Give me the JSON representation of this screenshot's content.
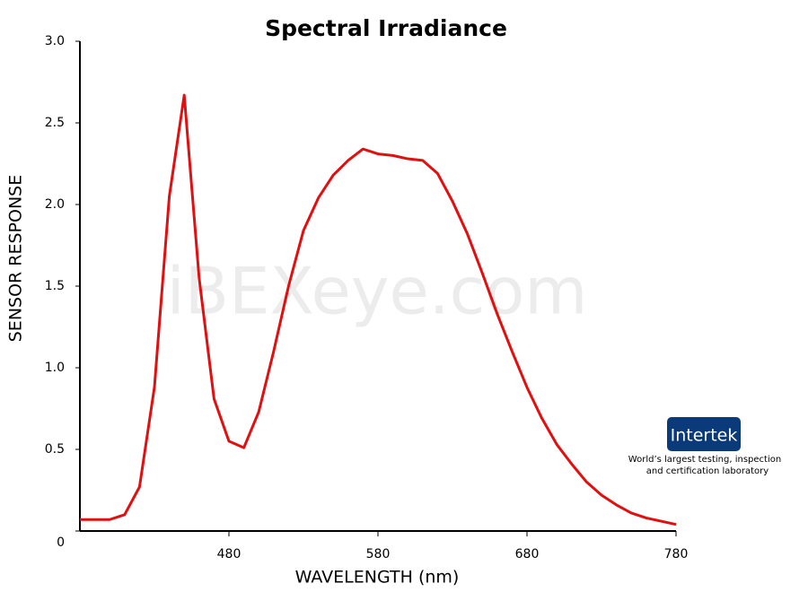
{
  "chart_data": {
    "type": "line",
    "title": "Spectral Irradiance",
    "xlabel": "WAVELENGTH (nm)",
    "ylabel": "SENSOR RESPONSE",
    "watermark": "iBEXeye.com",
    "logo": {
      "name": "Intertek",
      "tagline": [
        "World’s largest testing, inspection",
        "and certification laboratory"
      ]
    },
    "xlim": [
      380,
      780
    ],
    "xticks": [
      480,
      580,
      680,
      780
    ],
    "ylim": [
      0,
      3
    ],
    "yticks": [
      0,
      0.5,
      {
        "value": 1,
        "label": "1.0"
      },
      1.5,
      {
        "value": 2,
        "label": "2.0"
      },
      2.5,
      {
        "value": 3,
        "label": "3.0"
      }
    ],
    "series": [
      {
        "color": "#e01010",
        "x": [
          380,
          400,
          410,
          420,
          430,
          440,
          450,
          460,
          470,
          480,
          490,
          500,
          510,
          520,
          530,
          540,
          550,
          560,
          570,
          580,
          590,
          600,
          610,
          620,
          630,
          640,
          650,
          660,
          670,
          680,
          690,
          700,
          710,
          720,
          730,
          740,
          750,
          760,
          770,
          780
        ],
        "values": [
          0.07,
          0.07,
          0.1,
          0.27,
          0.88,
          2.05,
          2.67,
          1.55,
          0.81,
          0.55,
          0.51,
          0.73,
          1.1,
          1.5,
          1.84,
          2.04,
          2.18,
          2.27,
          2.34,
          2.31,
          2.3,
          2.28,
          2.27,
          2.19,
          2.02,
          1.82,
          1.58,
          1.33,
          1.1,
          0.88,
          0.69,
          0.53,
          0.41,
          0.3,
          0.22,
          0.16,
          0.11,
          0.08,
          0.06,
          0.04
        ]
      }
    ]
  }
}
